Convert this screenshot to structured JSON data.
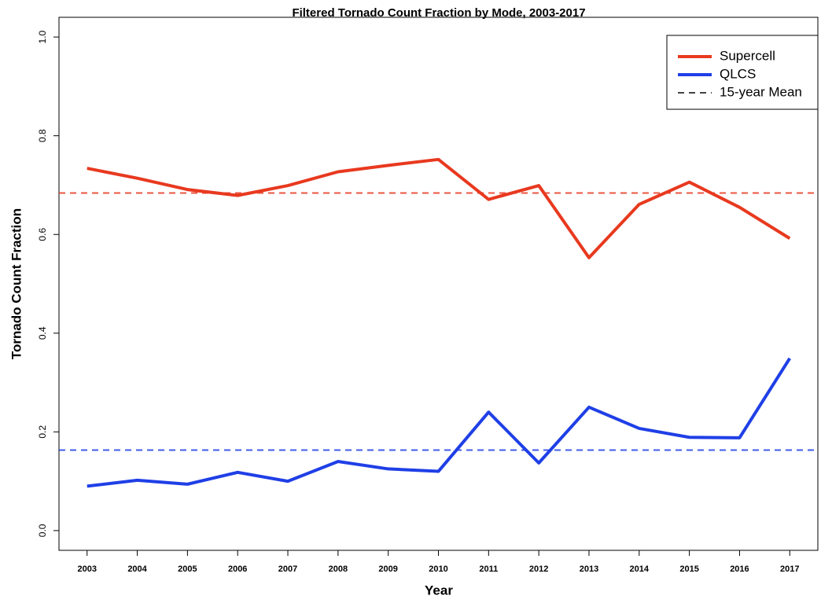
{
  "chart_data": {
    "type": "line",
    "title": "Filtered Tornado Count Fraction by Mode, 2003-2017",
    "x_label": "Year",
    "y_label": "Tornado Count Fraction",
    "x": [
      2003,
      2004,
      2005,
      2006,
      2007,
      2008,
      2009,
      2010,
      2011,
      2012,
      2013,
      2014,
      2015,
      2016,
      2017
    ],
    "series": [
      {
        "name": "Supercell",
        "color": "#e8391f",
        "mean": 0.684,
        "values": [
          0.734,
          0.714,
          0.691,
          0.679,
          0.699,
          0.727,
          0.74,
          0.752,
          0.671,
          0.699,
          0.553,
          0.661,
          0.706,
          0.655,
          0.592
        ]
      },
      {
        "name": "QLCS",
        "color": "#1f3fe6",
        "mean": 0.163,
        "values": [
          0.09,
          0.102,
          0.094,
          0.118,
          0.1,
          0.14,
          0.125,
          0.12,
          0.24,
          0.137,
          0.25,
          0.207,
          0.189,
          0.188,
          0.349
        ]
      }
    ],
    "mean_legend": "15-year Mean",
    "mean_legend_color": "#444444",
    "xlim": [
      2002.44,
      2017.56
    ],
    "ylim": [
      -0.04,
      1.04
    ],
    "xticks": [
      2003,
      2004,
      2005,
      2006,
      2007,
      2008,
      2009,
      2010,
      2011,
      2012,
      2013,
      2014,
      2015,
      2016,
      2017
    ],
    "yticks": [
      {
        "value": 0,
        "label": "0.0"
      },
      0.2,
      0.4,
      0.6,
      0.8,
      {
        "value": 1,
        "label": "1.0"
      }
    ],
    "legend": "top-right"
  }
}
